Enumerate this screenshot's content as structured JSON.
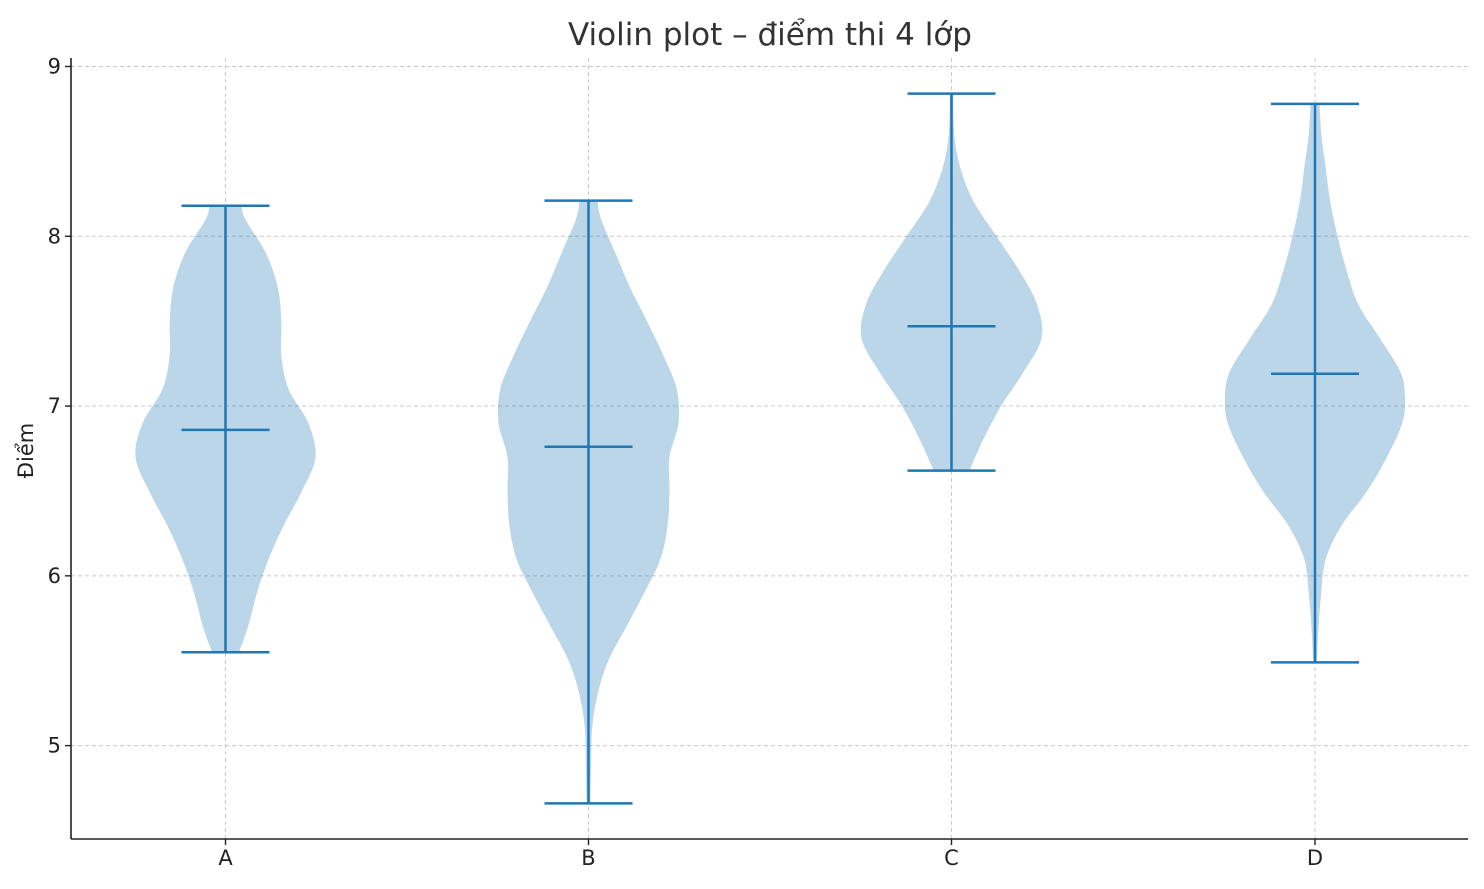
{
  "chart_data": {
    "type": "violin",
    "title": "Violin plot – điểm thi 4 lớp",
    "xlabel": "",
    "ylabel": "Điểm",
    "ylim": [
      4.45,
      9.05
    ],
    "yticks": [
      5,
      6,
      7,
      8,
      9
    ],
    "grid": true,
    "colors": {
      "violin_fill": "#1f77b4",
      "violin_fill_opacity": 0.3,
      "lines": "#1f77b4",
      "axis": "#222222",
      "grid": "#c8c8c8"
    },
    "categories": [
      "A",
      "B",
      "C",
      "D"
    ],
    "series": [
      {
        "category": "A",
        "min": 5.55,
        "max": 8.18,
        "mean": 6.86,
        "density": [
          [
            5.55,
            0.15
          ],
          [
            5.7,
            0.25
          ],
          [
            5.9,
            0.35
          ],
          [
            6.1,
            0.48
          ],
          [
            6.3,
            0.65
          ],
          [
            6.5,
            0.85
          ],
          [
            6.7,
            1.0
          ],
          [
            6.9,
            0.92
          ],
          [
            7.1,
            0.7
          ],
          [
            7.3,
            0.62
          ],
          [
            7.5,
            0.62
          ],
          [
            7.7,
            0.58
          ],
          [
            7.9,
            0.45
          ],
          [
            8.1,
            0.22
          ],
          [
            8.18,
            0.18
          ]
        ]
      },
      {
        "category": "B",
        "min": 4.66,
        "max": 8.21,
        "mean": 6.76,
        "density": [
          [
            4.66,
            0.02
          ],
          [
            4.9,
            0.03
          ],
          [
            5.1,
            0.04
          ],
          [
            5.3,
            0.1
          ],
          [
            5.5,
            0.22
          ],
          [
            5.7,
            0.42
          ],
          [
            5.9,
            0.62
          ],
          [
            6.1,
            0.8
          ],
          [
            6.3,
            0.88
          ],
          [
            6.5,
            0.9
          ],
          [
            6.7,
            0.9
          ],
          [
            6.9,
            1.0
          ],
          [
            7.1,
            0.98
          ],
          [
            7.3,
            0.83
          ],
          [
            7.5,
            0.65
          ],
          [
            7.7,
            0.46
          ],
          [
            7.9,
            0.3
          ],
          [
            8.1,
            0.14
          ],
          [
            8.21,
            0.1
          ]
        ]
      },
      {
        "category": "C",
        "min": 6.62,
        "max": 8.84,
        "mean": 7.47,
        "density": [
          [
            6.62,
            0.2
          ],
          [
            6.8,
            0.35
          ],
          [
            7.0,
            0.55
          ],
          [
            7.2,
            0.8
          ],
          [
            7.4,
            1.0
          ],
          [
            7.6,
            0.95
          ],
          [
            7.8,
            0.75
          ],
          [
            8.0,
            0.5
          ],
          [
            8.2,
            0.25
          ],
          [
            8.4,
            0.1
          ],
          [
            8.6,
            0.03
          ],
          [
            8.84,
            0.02
          ]
        ]
      },
      {
        "category": "D",
        "min": 5.49,
        "max": 8.78,
        "mean": 7.19,
        "density": [
          [
            5.49,
            0.02
          ],
          [
            5.7,
            0.04
          ],
          [
            5.9,
            0.07
          ],
          [
            6.1,
            0.12
          ],
          [
            6.3,
            0.3
          ],
          [
            6.5,
            0.58
          ],
          [
            6.7,
            0.8
          ],
          [
            6.9,
            0.97
          ],
          [
            7.05,
            1.0
          ],
          [
            7.2,
            0.95
          ],
          [
            7.4,
            0.72
          ],
          [
            7.6,
            0.48
          ],
          [
            7.8,
            0.35
          ],
          [
            8.0,
            0.25
          ],
          [
            8.2,
            0.17
          ],
          [
            8.4,
            0.12
          ],
          [
            8.6,
            0.07
          ],
          [
            8.78,
            0.05
          ]
        ]
      }
    ]
  }
}
